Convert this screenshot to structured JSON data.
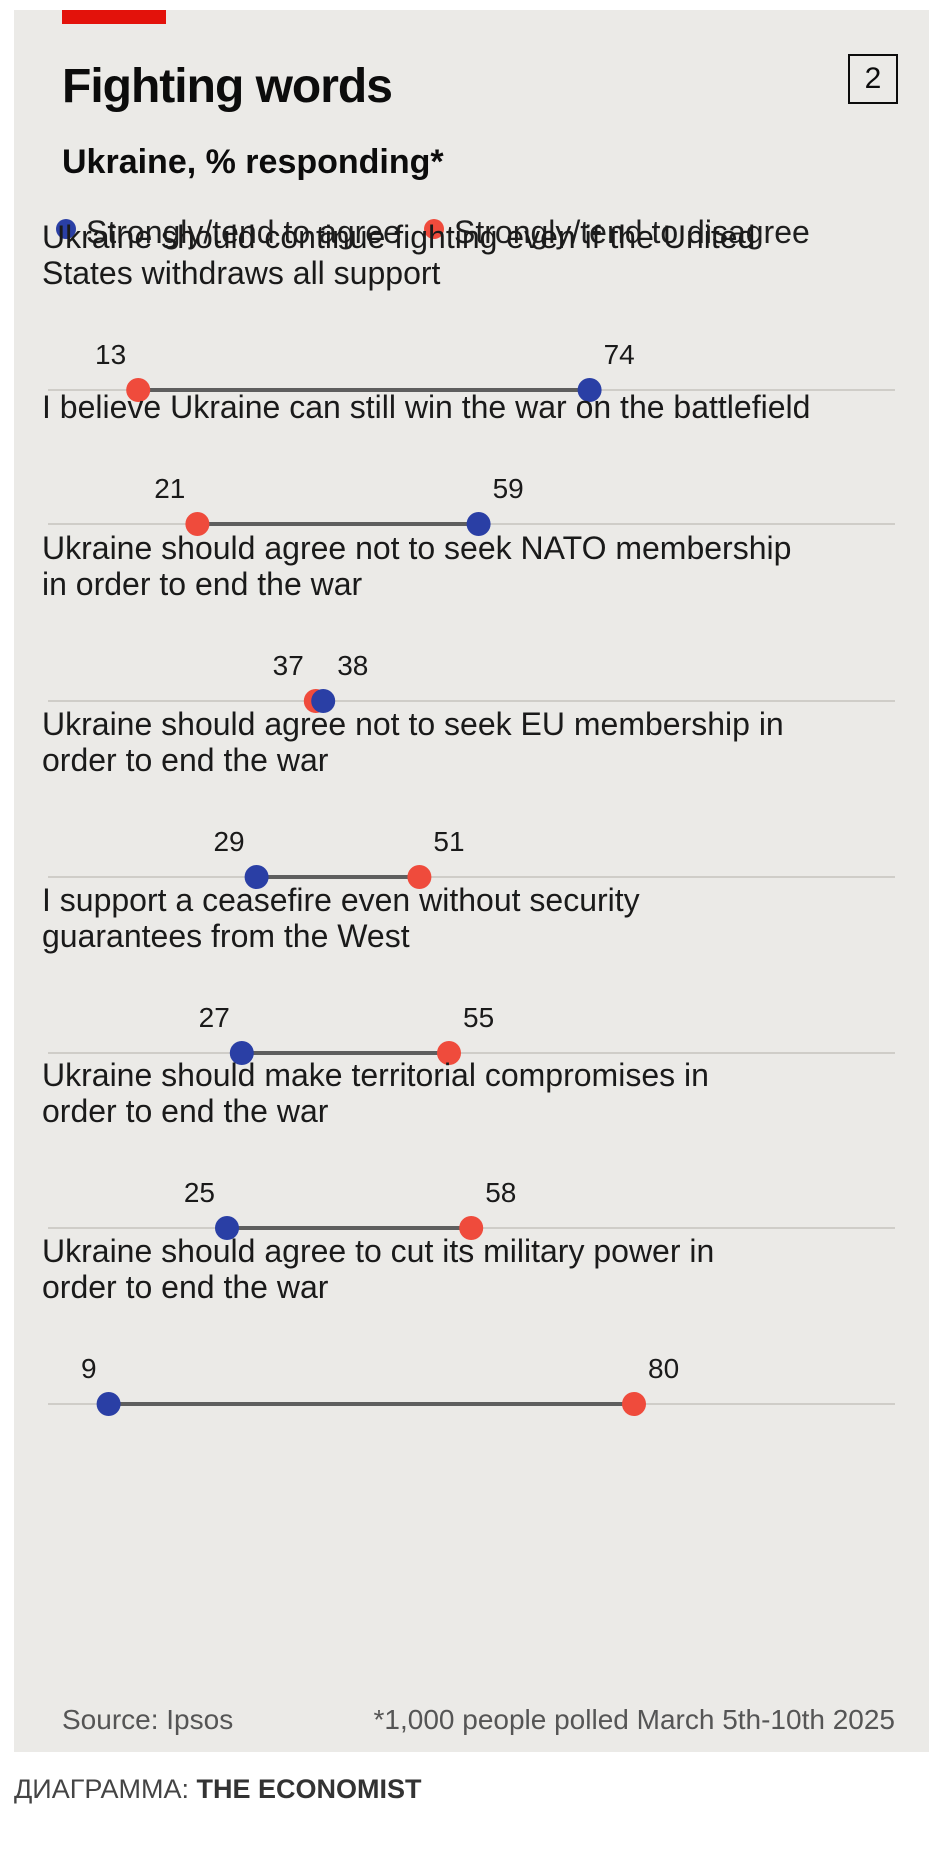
{
  "chart_number": "2",
  "credit": {
    "prefix": "ДИАГРАММА",
    "name": "THE ECONOMIST"
  },
  "colors": {
    "agree": "#2a3fa5",
    "disagree": "#ef4b3c",
    "connector": "#5e5e5e",
    "gridline": "#cfcdc8",
    "background": "#ebeae7",
    "brand_red": "#e3120b"
  },
  "chart_data": {
    "type": "dumbbell",
    "title": "Fighting words",
    "subtitle": "Ukraine, % responding*",
    "xlim": [
      0,
      100
    ],
    "legend": {
      "placement": "top",
      "agree": "Strongly/tend to agree",
      "disagree": "Strongly/tend to disagree"
    },
    "series": [
      {
        "name": "Strongly/tend to agree",
        "key": "agree"
      },
      {
        "name": "Strongly/tend to disagree",
        "key": "disagree"
      }
    ],
    "categories": [
      {
        "lines": [
          "Ukraine should continue fighting even if the United",
          "States withdraws all support"
        ],
        "agree": 74,
        "disagree": 13
      },
      {
        "lines": [
          "I believe Ukraine can still win the war on the battlefield"
        ],
        "agree": 59,
        "disagree": 21
      },
      {
        "lines": [
          "Ukraine should agree not to seek NATO membership",
          "in order to end the war"
        ],
        "agree": 38,
        "disagree": 37
      },
      {
        "lines": [
          "Ukraine should agree not to seek EU membership in",
          "order to end the war"
        ],
        "agree": 29,
        "disagree": 51
      },
      {
        "lines": [
          "I support a ceasefire even without security",
          "guarantees from the West"
        ],
        "agree": 27,
        "disagree": 55
      },
      {
        "lines": [
          "Ukraine should make territorial compromises in",
          "order to end the war"
        ],
        "agree": 25,
        "disagree": 58
      },
      {
        "lines": [
          "Ukraine should agree to cut its military power in",
          "order to end the war"
        ],
        "agree": 9,
        "disagree": 80
      }
    ],
    "source": "Source: Ipsos",
    "footnote": "*1,000 people polled March 5th-10th 2025"
  }
}
